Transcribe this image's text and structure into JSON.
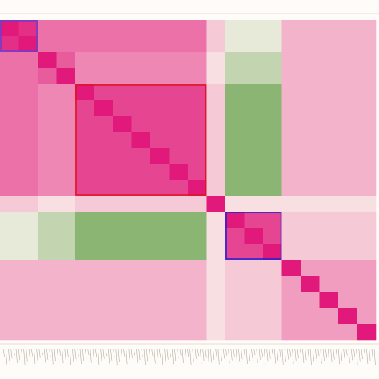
{
  "chart_data": {
    "type": "heatmap",
    "zlim": [
      -1,
      1
    ],
    "colors": {
      "positive": "#e0197a",
      "zero": "#fbf5ee",
      "negative": "#3f8a1f"
    },
    "z": [
      [
        1,
        0.9,
        0.6,
        0.6,
        0.6,
        0.6,
        0.6,
        0.6,
        0.6,
        0.6,
        0.6,
        0.2,
        -0.1,
        -0.1,
        -0.1,
        0.3,
        0.3,
        0.3,
        0.3,
        0.3
      ],
      [
        0.9,
        1,
        0.6,
        0.6,
        0.6,
        0.6,
        0.6,
        0.6,
        0.6,
        0.6,
        0.6,
        0.2,
        -0.1,
        -0.1,
        -0.1,
        0.3,
        0.3,
        0.3,
        0.3,
        0.3
      ],
      [
        0.6,
        0.6,
        1,
        0.7,
        0.5,
        0.5,
        0.5,
        0.5,
        0.5,
        0.5,
        0.5,
        0.1,
        -0.3,
        -0.3,
        -0.3,
        0.3,
        0.3,
        0.3,
        0.3,
        0.3
      ],
      [
        0.6,
        0.6,
        0.7,
        1,
        0.5,
        0.5,
        0.5,
        0.5,
        0.5,
        0.5,
        0.5,
        0.1,
        -0.3,
        -0.3,
        -0.3,
        0.3,
        0.3,
        0.3,
        0.3,
        0.3
      ],
      [
        0.6,
        0.6,
        0.5,
        0.5,
        1,
        0.8,
        0.8,
        0.8,
        0.8,
        0.8,
        0.8,
        0.2,
        -0.6,
        -0.6,
        -0.6,
        0.3,
        0.3,
        0.3,
        0.3,
        0.3
      ],
      [
        0.6,
        0.6,
        0.5,
        0.5,
        0.8,
        1,
        0.8,
        0.8,
        0.8,
        0.8,
        0.8,
        0.2,
        -0.6,
        -0.6,
        -0.6,
        0.3,
        0.3,
        0.3,
        0.3,
        0.3
      ],
      [
        0.6,
        0.6,
        0.5,
        0.5,
        0.8,
        0.8,
        1,
        0.8,
        0.8,
        0.8,
        0.8,
        0.2,
        -0.6,
        -0.6,
        -0.6,
        0.3,
        0.3,
        0.3,
        0.3,
        0.3
      ],
      [
        0.6,
        0.6,
        0.5,
        0.5,
        0.8,
        0.8,
        0.8,
        1,
        0.8,
        0.8,
        0.8,
        0.2,
        -0.6,
        -0.6,
        -0.6,
        0.3,
        0.3,
        0.3,
        0.3,
        0.3
      ],
      [
        0.6,
        0.6,
        0.5,
        0.5,
        0.8,
        0.8,
        0.8,
        0.8,
        1,
        0.8,
        0.8,
        0.2,
        -0.6,
        -0.6,
        -0.6,
        0.3,
        0.3,
        0.3,
        0.3,
        0.3
      ],
      [
        0.6,
        0.6,
        0.5,
        0.5,
        0.8,
        0.8,
        0.8,
        0.8,
        0.8,
        1,
        0.8,
        0.2,
        -0.6,
        -0.6,
        -0.6,
        0.3,
        0.3,
        0.3,
        0.3,
        0.3
      ],
      [
        0.6,
        0.6,
        0.5,
        0.5,
        0.8,
        0.8,
        0.8,
        0.8,
        0.8,
        0.8,
        1,
        0.2,
        -0.6,
        -0.6,
        -0.6,
        0.3,
        0.3,
        0.3,
        0.3,
        0.3
      ],
      [
        0.2,
        0.2,
        0.1,
        0.1,
        0.2,
        0.2,
        0.2,
        0.2,
        0.2,
        0.2,
        0.2,
        1,
        0.1,
        0.1,
        0.1,
        0.1,
        0.1,
        0.1,
        0.1,
        0.1
      ],
      [
        -0.1,
        -0.1,
        -0.3,
        -0.3,
        -0.6,
        -0.6,
        -0.6,
        -0.6,
        -0.6,
        -0.6,
        -0.6,
        0.1,
        1,
        0.8,
        0.8,
        0.2,
        0.2,
        0.2,
        0.2,
        0.2
      ],
      [
        -0.1,
        -0.1,
        -0.3,
        -0.3,
        -0.6,
        -0.6,
        -0.6,
        -0.6,
        -0.6,
        -0.6,
        -0.6,
        0.1,
        0.8,
        1,
        0.8,
        0.2,
        0.2,
        0.2,
        0.2,
        0.2
      ],
      [
        -0.1,
        -0.1,
        -0.3,
        -0.3,
        -0.6,
        -0.6,
        -0.6,
        -0.6,
        -0.6,
        -0.6,
        -0.6,
        0.1,
        0.8,
        0.8,
        1,
        0.2,
        0.2,
        0.2,
        0.2,
        0.2
      ],
      [
        0.3,
        0.3,
        0.3,
        0.3,
        0.3,
        0.3,
        0.3,
        0.3,
        0.3,
        0.3,
        0.3,
        0.1,
        0.2,
        0.2,
        0.2,
        1,
        0.4,
        0.4,
        0.4,
        0.4
      ],
      [
        0.3,
        0.3,
        0.3,
        0.3,
        0.3,
        0.3,
        0.3,
        0.3,
        0.3,
        0.3,
        0.3,
        0.1,
        0.2,
        0.2,
        0.2,
        0.4,
        1,
        0.4,
        0.4,
        0.4
      ],
      [
        0.3,
        0.3,
        0.3,
        0.3,
        0.3,
        0.3,
        0.3,
        0.3,
        0.3,
        0.3,
        0.3,
        0.1,
        0.2,
        0.2,
        0.2,
        0.4,
        0.4,
        1,
        0.4,
        0.4
      ],
      [
        0.3,
        0.3,
        0.3,
        0.3,
        0.3,
        0.3,
        0.3,
        0.3,
        0.3,
        0.3,
        0.3,
        0.1,
        0.2,
        0.2,
        0.2,
        0.4,
        0.4,
        0.4,
        1,
        0.4
      ],
      [
        0.3,
        0.3,
        0.3,
        0.3,
        0.3,
        0.3,
        0.3,
        0.3,
        0.3,
        0.3,
        0.3,
        0.1,
        0.2,
        0.2,
        0.2,
        0.4,
        0.4,
        0.4,
        0.4,
        1
      ]
    ],
    "clusters": [
      {
        "start": 0,
        "end": 1,
        "color": "#6a3fd0"
      },
      {
        "start": 4,
        "end": 10,
        "color": "#e0141e"
      },
      {
        "start": 12,
        "end": 14,
        "color": "#1b22d8"
      }
    ]
  }
}
